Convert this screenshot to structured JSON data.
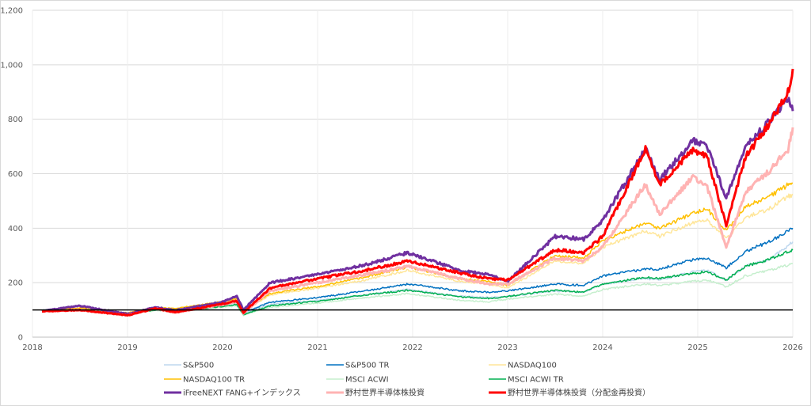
{
  "chart_data": {
    "type": "line",
    "title": "",
    "xlabel": "",
    "ylabel": "",
    "xlim": [
      2018,
      2026
    ],
    "ylim": [
      0,
      1200
    ],
    "x_ticks": [
      2018,
      2019,
      2020,
      2021,
      2022,
      2023,
      2024,
      2025,
      2026
    ],
    "x_tick_labels": [
      "2018",
      "2019",
      "2020",
      "2021",
      "2022",
      "2023",
      "2024",
      "2025",
      "2026"
    ],
    "y_ticks": [
      0,
      200,
      400,
      600,
      800,
      1000,
      1200
    ],
    "y_tick_labels": [
      "0",
      "200",
      "400",
      "600",
      "800",
      "1,000",
      "1,200"
    ],
    "grid": "horizontal",
    "reference_line": {
      "y": 100,
      "color": "#000000"
    },
    "legend_position": "bottom",
    "x": [
      2018.1,
      2018.5,
      2019.0,
      2019.3,
      2019.5,
      2020.0,
      2020.15,
      2020.22,
      2020.5,
      2021.0,
      2021.5,
      2021.95,
      2022.5,
      2022.8,
      2023.0,
      2023.5,
      2023.8,
      2024.0,
      2024.45,
      2024.6,
      2024.95,
      2025.1,
      2025.3,
      2025.5,
      2025.75,
      2025.95,
      2026.0
    ],
    "series": [
      {
        "name": "S&P500",
        "color": "#bdd7ee",
        "width": 1.5,
        "values": [
          97,
          102,
          88,
          103,
          97,
          118,
          125,
          85,
          120,
          135,
          155,
          175,
          150,
          145,
          150,
          170,
          165,
          195,
          215,
          210,
          240,
          245,
          210,
          260,
          285,
          335,
          350
        ]
      },
      {
        "name": "S&P500 TR",
        "color": "#0070c0",
        "width": 1.5,
        "values": [
          97,
          103,
          89,
          106,
          100,
          123,
          131,
          90,
          128,
          145,
          170,
          195,
          170,
          165,
          170,
          195,
          190,
          225,
          250,
          250,
          285,
          290,
          255,
          315,
          350,
          390,
          400
        ]
      },
      {
        "name": "NASDAQ100",
        "color": "#ffe699",
        "width": 1.5,
        "values": [
          97,
          106,
          88,
          108,
          103,
          128,
          140,
          95,
          155,
          180,
          210,
          245,
          205,
          195,
          180,
          280,
          270,
          330,
          390,
          370,
          420,
          430,
          360,
          440,
          470,
          515,
          525
        ]
      },
      {
        "name": "NASDAQ100 TR",
        "color": "#ffc000",
        "width": 1.5,
        "values": [
          97,
          107,
          89,
          110,
          105,
          131,
          143,
          98,
          160,
          186,
          220,
          258,
          215,
          205,
          190,
          300,
          290,
          355,
          420,
          400,
          455,
          470,
          390,
          480,
          515,
          560,
          565
        ]
      },
      {
        "name": "MSCI ACWI",
        "color": "#c6efce",
        "width": 1.5,
        "values": [
          96,
          100,
          85,
          98,
          93,
          110,
          115,
          80,
          110,
          125,
          145,
          160,
          135,
          130,
          140,
          158,
          150,
          175,
          195,
          190,
          205,
          210,
          185,
          225,
          245,
          265,
          270
        ]
      },
      {
        "name": "MSCI ACWI TR",
        "color": "#00b050",
        "width": 1.5,
        "values": [
          96,
          101,
          86,
          100,
          95,
          113,
          120,
          83,
          115,
          132,
          155,
          172,
          148,
          142,
          150,
          172,
          165,
          195,
          220,
          215,
          235,
          240,
          210,
          260,
          285,
          315,
          320
        ]
      },
      {
        "name": "iFreeNEXT FANG+インデックス",
        "color": "#7030a0",
        "width": 3,
        "values": [
          96,
          115,
          85,
          110,
          98,
          130,
          150,
          100,
          200,
          230,
          265,
          310,
          245,
          230,
          205,
          370,
          360,
          430,
          690,
          580,
          720,
          700,
          510,
          700,
          790,
          880,
          830
        ]
      },
      {
        "name": "野村世界半導体株投資",
        "color": "#ffb3b3",
        "width": 3,
        "values": [
          95,
          100,
          80,
          105,
          90,
          120,
          130,
          88,
          170,
          200,
          230,
          260,
          215,
          195,
          195,
          290,
          280,
          330,
          560,
          450,
          590,
          550,
          330,
          530,
          610,
          690,
          770
        ]
      },
      {
        "name": "野村世界半導体株投資（分配金再投資）",
        "color": "#ff0000",
        "width": 3,
        "values": [
          95,
          100,
          80,
          106,
          91,
          122,
          133,
          90,
          180,
          215,
          245,
          280,
          235,
          215,
          210,
          320,
          310,
          370,
          690,
          560,
          690,
          660,
          410,
          660,
          780,
          900,
          985
        ]
      }
    ]
  }
}
